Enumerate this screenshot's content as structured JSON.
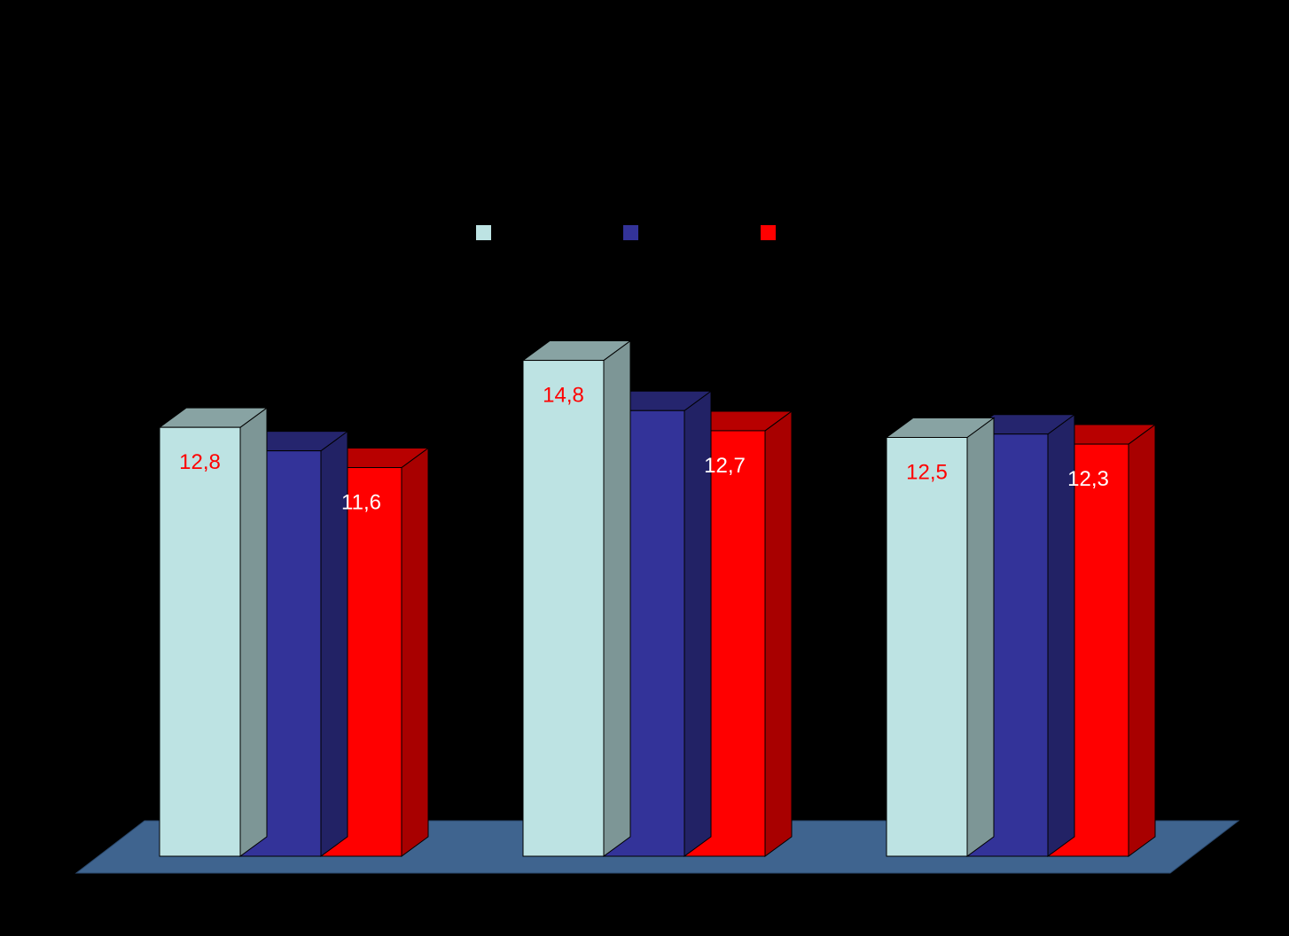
{
  "chart_data": {
    "type": "bar",
    "categories": [
      "",
      "",
      ""
    ],
    "series": [
      {
        "color": "#BDE3E3",
        "values": [
          12.8,
          14.8,
          12.5
        ],
        "labels": [
          "12,8",
          "14,8",
          "12,5"
        ],
        "label_color": "#FF0000"
      },
      {
        "color": "#333399",
        "values": [
          12.1,
          13.3,
          12.6
        ],
        "labels": [
          "",
          "",
          ""
        ],
        "label_color": "#FFFFFF"
      },
      {
        "color": "#FF0000",
        "values": [
          11.6,
          12.7,
          12.3
        ],
        "labels": [
          "11,6",
          "12,7",
          "12,3"
        ],
        "label_color": "#FFFFFF"
      }
    ],
    "title": "",
    "xlabel": "",
    "ylabel": "",
    "ylim": [
      0,
      20
    ],
    "grid": false,
    "legend": "top",
    "floor_color": "#3F648F",
    "background": "#000000"
  }
}
